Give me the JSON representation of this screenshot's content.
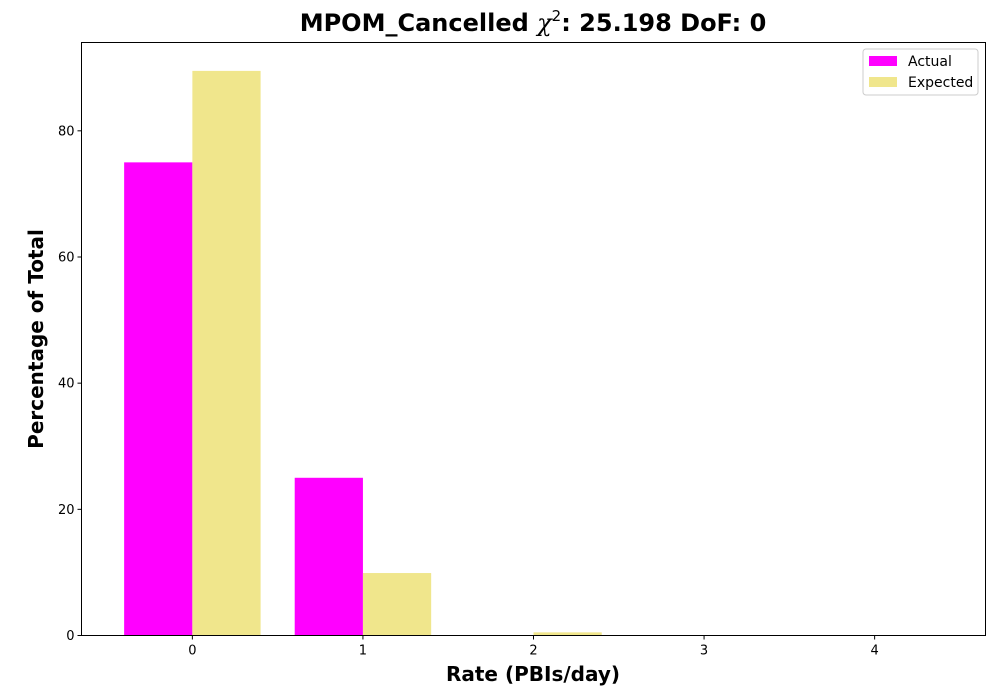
{
  "chart_data": {
    "type": "bar",
    "title_prefix": "MPOM_Cancelled ",
    "title_chi": "χ",
    "title_sup": "2",
    "title_suffix": ": 25.198 DoF: 0",
    "xlabel": "Rate (PBIs/day)",
    "ylabel": "Percentage of Total",
    "categories": [
      "0",
      "1",
      "2",
      "3",
      "4"
    ],
    "x": [
      0,
      1,
      2,
      3,
      4
    ],
    "series": [
      {
        "name": "Actual",
        "color": "#ff00ff",
        "values": [
          75.0,
          25.0,
          0.0,
          0.0,
          0.0
        ]
      },
      {
        "name": "Expected",
        "color": "#f0e68c",
        "values": [
          89.5,
          9.9,
          0.5,
          0.02,
          0.0
        ]
      }
    ],
    "xlim": [
      -0.65,
      4.65
    ],
    "ylim": [
      0,
      94
    ],
    "yticks": [
      0,
      20,
      40,
      60,
      80
    ],
    "grid": false,
    "legend_position": "top-right"
  }
}
